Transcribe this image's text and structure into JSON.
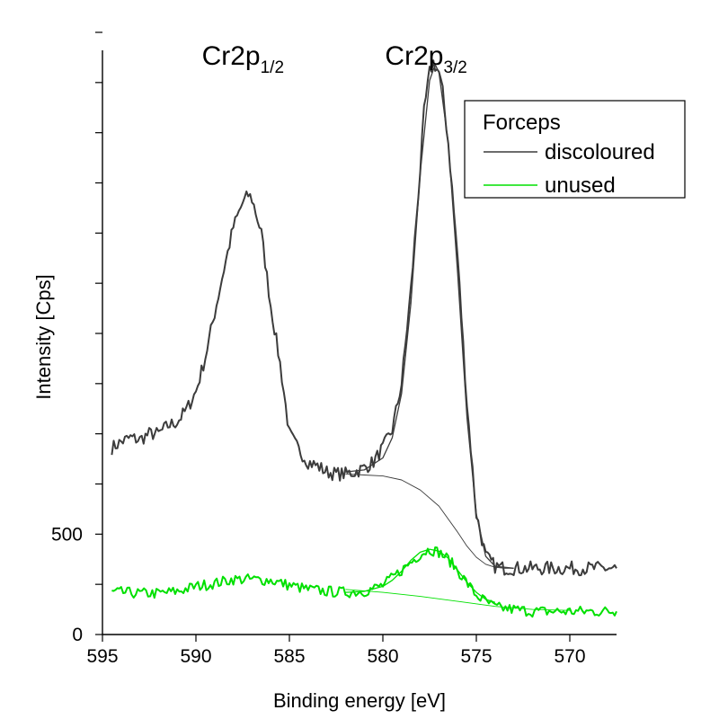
{
  "chart_data": {
    "type": "line",
    "xlabel": "Binding energy [eV]",
    "ylabel": "Intensity [Cps]",
    "xlim": [
      595,
      567.5
    ],
    "x_reversed": true,
    "ylim": [
      0,
      3000
    ],
    "x_ticks": [
      595,
      590,
      585,
      580,
      575,
      570
    ],
    "y_ticks_labeled": [
      0,
      500
    ],
    "y_ticks_unlabeled_step": 250,
    "grid": false,
    "legend": {
      "title": "Forceps",
      "placement": "top-right",
      "entries": [
        "discoloured",
        "unused"
      ]
    },
    "annotations": [
      {
        "main": "Cr2p",
        "sub": "1/2",
        "x": 587.1,
        "y": 2750
      },
      {
        "main": "Cr2p",
        "sub": "3/2",
        "x": 577.3,
        "y": 2750
      }
    ],
    "series": [
      {
        "name": "discoloured",
        "color": "#3c3c3c",
        "style": "measured",
        "x": [
          594.5,
          594.0,
          593.5,
          593.0,
          592.5,
          592.0,
          591.5,
          591.0,
          590.5,
          590.0,
          589.5,
          589.0,
          588.5,
          588.0,
          587.5,
          587.2,
          587.0,
          586.5,
          586.0,
          585.5,
          585.0,
          584.5,
          584.0,
          583.5,
          583.0,
          582.5,
          582.0,
          581.5,
          581.0,
          580.5,
          580.0,
          579.5,
          579.0,
          578.5,
          578.0,
          577.8,
          577.5,
          577.3,
          577.0,
          576.8,
          576.5,
          576.0,
          575.5,
          575.0,
          574.5,
          574.0,
          573.5,
          573.0,
          572.5,
          572.0,
          571.5,
          571.0,
          570.5,
          570.0,
          569.5,
          569.0,
          568.5,
          568.0,
          567.5
        ],
        "y": [
          930,
          960,
          980,
          970,
          1000,
          1000,
          1040,
          1060,
          1120,
          1210,
          1380,
          1600,
          1820,
          2030,
          2150,
          2190,
          2170,
          2000,
          1640,
          1350,
          1000,
          920,
          860,
          840,
          810,
          800,
          800,
          810,
          830,
          860,
          930,
          1020,
          1250,
          1720,
          2320,
          2600,
          2800,
          2850,
          2800,
          2700,
          2450,
          1880,
          1150,
          600,
          390,
          340,
          330,
          330,
          330,
          330,
          330,
          330,
          330,
          330,
          330,
          330,
          330,
          330,
          330
        ]
      },
      {
        "name": "unused",
        "color": "#00e000",
        "style": "measured",
        "x": [
          594.5,
          594.0,
          593.0,
          592.0,
          591.0,
          590.0,
          589.0,
          588.0,
          587.0,
          586.0,
          585.0,
          584.0,
          583.0,
          582.0,
          581.0,
          580.0,
          579.0,
          578.0,
          577.5,
          577.0,
          576.5,
          576.0,
          575.0,
          574.0,
          573.0,
          572.0,
          571.0,
          570.0,
          569.0,
          568.0,
          567.5
        ],
        "y": [
          210,
          210,
          205,
          205,
          215,
          240,
          255,
          275,
          275,
          270,
          245,
          225,
          215,
          210,
          215,
          245,
          320,
          400,
          425,
          410,
          375,
          320,
          195,
          135,
          125,
          115,
          115,
          115,
          115,
          115,
          115
        ]
      }
    ],
    "fits": [
      {
        "parent_series": "discoloured",
        "color": "#3c3c3c",
        "role": "peak fit",
        "x": [
          582.0,
          581.0,
          580.0,
          579.5,
          579.0,
          578.5,
          578.0,
          577.5,
          577.2,
          577.0,
          576.5,
          576.0,
          575.5,
          575.0,
          574.5,
          574.0,
          573.5,
          573.0
        ],
        "y": [
          810,
          820,
          880,
          980,
          1200,
          1650,
          2300,
          2760,
          2840,
          2800,
          2450,
          1800,
          1080,
          600,
          390,
          340,
          335,
          330
        ]
      },
      {
        "parent_series": "discoloured",
        "color": "#3c3c3c",
        "role": "background",
        "x": [
          582.0,
          581.0,
          580.0,
          579.0,
          578.0,
          577.0,
          576.0,
          575.5,
          575.0,
          574.5,
          574.0,
          573.5,
          573.0
        ],
        "y": [
          800,
          795,
          790,
          770,
          720,
          640,
          510,
          440,
          385,
          350,
          335,
          330,
          330
        ]
      },
      {
        "parent_series": "unused",
        "color": "#00e000",
        "role": "peak fit",
        "x": [
          582.0,
          581.0,
          580.0,
          579.5,
          579.0,
          578.5,
          578.0,
          577.5,
          577.0,
          576.5,
          576.0,
          575.5,
          575.0,
          574.5,
          574.0
        ],
        "y": [
          210,
          215,
          240,
          270,
          315,
          370,
          410,
          425,
          415,
          380,
          320,
          260,
          210,
          175,
          160
        ]
      },
      {
        "parent_series": "unused",
        "color": "#00e000",
        "role": "background",
        "x": [
          582.0,
          580.0,
          578.0,
          576.0,
          574.0,
          572.0,
          570.0
        ],
        "y": [
          225,
          210,
          190,
          165,
          140,
          125,
          120
        ]
      }
    ]
  }
}
